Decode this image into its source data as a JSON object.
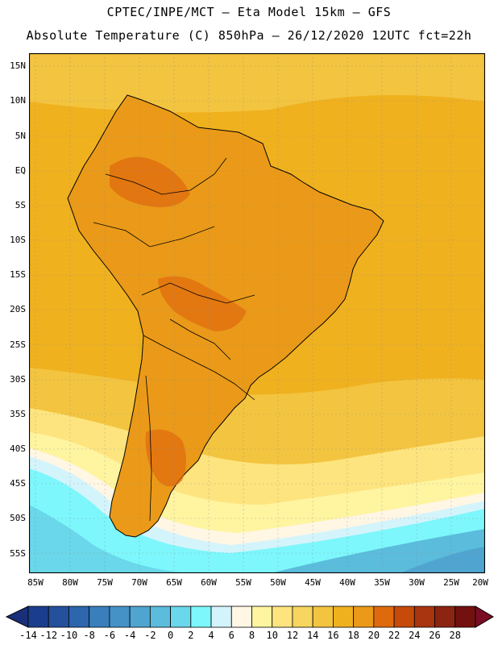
{
  "header": {
    "line1": "CPTEC/INPE/MCT –  Eta Model 15km – GFS",
    "line2": "Absolute Temperature (C) 850hPa – 26/12/2020 12UTC fct=22h"
  },
  "axes": {
    "lat_labels": [
      "15N",
      "10N",
      "5N",
      "EQ",
      "5S",
      "10S",
      "15S",
      "20S",
      "25S",
      "30S",
      "35S",
      "40S",
      "45S",
      "50S",
      "55S"
    ],
    "lon_labels": [
      "85W",
      "80W",
      "75W",
      "70W",
      "65W",
      "60W",
      "55W",
      "50W",
      "45W",
      "40W",
      "35W",
      "30W",
      "25W",
      "20W"
    ]
  },
  "colorbar": {
    "labels": [
      "-14",
      "-12",
      "-10",
      "-8",
      "-6",
      "-4",
      "-2",
      "0",
      "2",
      "4",
      "6",
      "8",
      "10",
      "12",
      "14",
      "16",
      "18",
      "20",
      "22",
      "24",
      "26",
      "28"
    ],
    "colors": [
      "#1b3e8c",
      "#24509c",
      "#2d66ac",
      "#3a7ebc",
      "#4592c6",
      "#4fa5d0",
      "#5bbcdc",
      "#6ad7ea",
      "#7df7fb",
      "#d4f4fb",
      "#fff6e4",
      "#fff4a0",
      "#fde47e",
      "#f7d55e",
      "#f3c43f",
      "#f0b11f",
      "#ea9a18",
      "#df6a0e",
      "#c64a0a",
      "#a83410",
      "#8c2412",
      "#72110f"
    ],
    "under_color": "#1a2f7a",
    "over_color": "#7a0c24"
  },
  "map_colors": {
    "ocean_warm": "#f0b11f",
    "ocean_mid": "#f3c43f",
    "ocean_light": "#fde47e",
    "pale": "#fff4a0",
    "cream": "#fff6e4",
    "icy": "#d4f4fb",
    "cyan": "#7df7fb",
    "cyan2": "#6ad7ea",
    "blue1": "#5bbcdc",
    "blue2": "#4fa5d0",
    "land_warm": "#ea9a18",
    "land_hot": "#df6a0e"
  }
}
